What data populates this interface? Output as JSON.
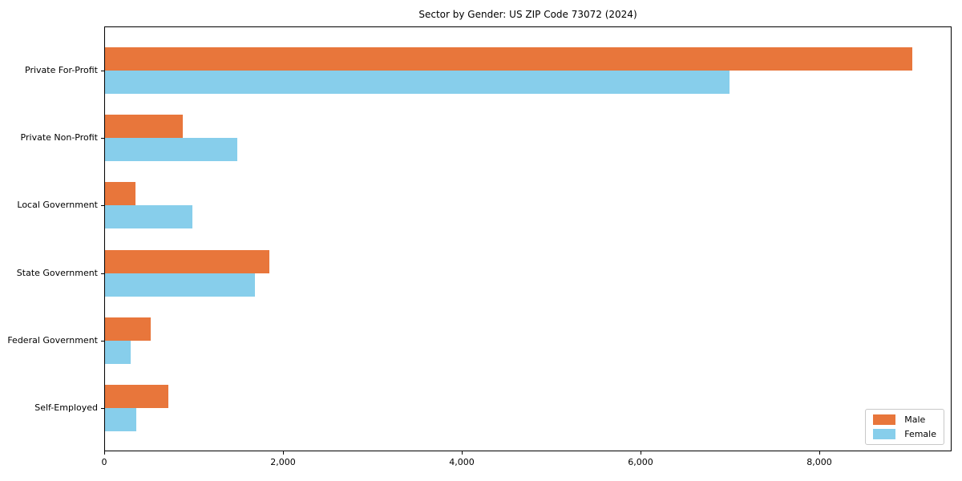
{
  "chart_data": {
    "type": "bar",
    "orientation": "horizontal",
    "title": "Sector by Gender: US ZIP Code 73072 (2024)",
    "categories": [
      "Private For-Profit",
      "Private Non-Profit",
      "Local Government",
      "State Government",
      "Federal Government",
      "Self-Employed"
    ],
    "series": [
      {
        "name": "Male",
        "color": "#e8763b",
        "values": [
          9030,
          870,
          340,
          1840,
          510,
          710
        ]
      },
      {
        "name": "Female",
        "color": "#87ceeb",
        "values": [
          6990,
          1480,
          980,
          1680,
          290,
          350
        ]
      }
    ],
    "xlabel": "",
    "ylabel": "",
    "xlim": [
      0,
      9480
    ],
    "xticks": [
      0,
      2000,
      4000,
      6000,
      8000
    ],
    "xtick_labels": [
      "0",
      "2,000",
      "4,000",
      "6,000",
      "8,000"
    ],
    "grid": false,
    "legend_position": "lower right",
    "background_color": "#ffffff",
    "spine_color": "#000000",
    "text_color": "#000000",
    "legend_border_color": "#c8c8c8"
  }
}
